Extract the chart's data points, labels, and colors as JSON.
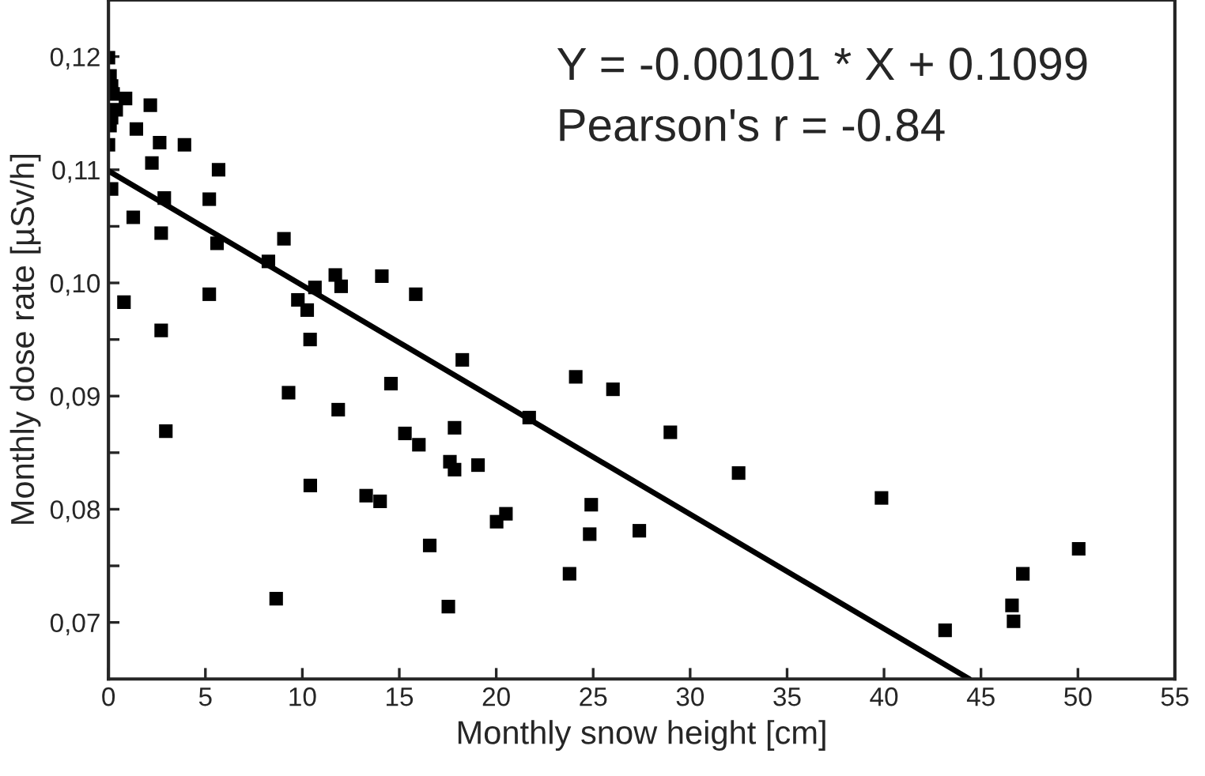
{
  "chart_data": {
    "type": "scatter",
    "xlabel": "Monthly snow height [cm]",
    "ylabel": "Monthly dose rate [µSv/h]",
    "annotations": [
      "Y = -0.00101 * X + 0.1099",
      "Pearson's r = -0.84"
    ],
    "xlim": [
      0,
      55
    ],
    "ylim": [
      0.065,
      0.125
    ],
    "xticks": [
      0,
      5,
      10,
      15,
      20,
      25,
      30,
      35,
      40,
      45,
      50,
      55
    ],
    "yticks": [
      {
        "value": 0.07,
        "label": "0,07"
      },
      {
        "value": 0.075,
        "label": null
      },
      {
        "value": 0.08,
        "label": "0,08"
      },
      {
        "value": 0.085,
        "label": null
      },
      {
        "value": 0.09,
        "label": "0,09"
      },
      {
        "value": 0.095,
        "label": null
      },
      {
        "value": 0.1,
        "label": "0,10"
      },
      {
        "value": 0.105,
        "label": null
      },
      {
        "value": 0.11,
        "label": "0,11"
      },
      {
        "value": 0.115,
        "label": null
      },
      {
        "value": 0.12,
        "label": "0,12"
      }
    ],
    "grid": false,
    "legend": false,
    "marker": "square",
    "series": [
      {
        "color": "#000000",
        "x": [
          0.0,
          0.08,
          0.16,
          0.24,
          0.4,
          0.16,
          0.08,
          0.0,
          0.16,
          0.88,
          2.16,
          1.44,
          2.64,
          3.92,
          2.24,
          5.68,
          2.88,
          5.2,
          1.28,
          2.72,
          5.6,
          9.05,
          8.25,
          11.7,
          12.0,
          10.65,
          14.1,
          15.85,
          5.2,
          9.77,
          10.25,
          0.8,
          2.72,
          10.4,
          18.25,
          9.29,
          14.57,
          11.85,
          2.96,
          15.29,
          16.01,
          17.85,
          17.61,
          17.85,
          19.06,
          10.41,
          13.29,
          14.01,
          16.57,
          8.65,
          17.53,
          24.1,
          26.02,
          21.7,
          28.98,
          32.5,
          20.5,
          20.02,
          24.9,
          24.82,
          27.38,
          39.87,
          23.78,
          50.04,
          47.16,
          46.6,
          46.68,
          43.15
        ],
        "values": [
          0.1199,
          0.1183,
          0.1174,
          0.1167,
          0.1153,
          0.1146,
          0.1139,
          0.1122,
          0.1083,
          0.1163,
          0.1157,
          0.1136,
          0.1124,
          0.1122,
          0.1106,
          0.11,
          0.1075,
          0.1074,
          0.1058,
          0.1044,
          0.1035,
          0.1039,
          0.1019,
          0.1007,
          0.0997,
          0.0996,
          0.1006,
          0.099,
          0.099,
          0.0985,
          0.0976,
          0.0983,
          0.0958,
          0.095,
          0.0932,
          0.0903,
          0.0911,
          0.0888,
          0.0869,
          0.0867,
          0.0857,
          0.0872,
          0.0842,
          0.0835,
          0.0839,
          0.0821,
          0.0812,
          0.0807,
          0.0768,
          0.0721,
          0.0714,
          0.0917,
          0.0906,
          0.0881,
          0.0868,
          0.0832,
          0.0796,
          0.0789,
          0.0804,
          0.0778,
          0.0781,
          0.081,
          0.0743,
          0.0765,
          0.0743,
          0.0715,
          0.0701,
          0.0693
        ]
      },
      {
        "type": "line",
        "color": "#000000",
        "marker": "none",
        "line_style": "solid",
        "x": [
          0,
          44.4
        ],
        "values": [
          0.1099,
          0.065
        ]
      }
    ]
  }
}
